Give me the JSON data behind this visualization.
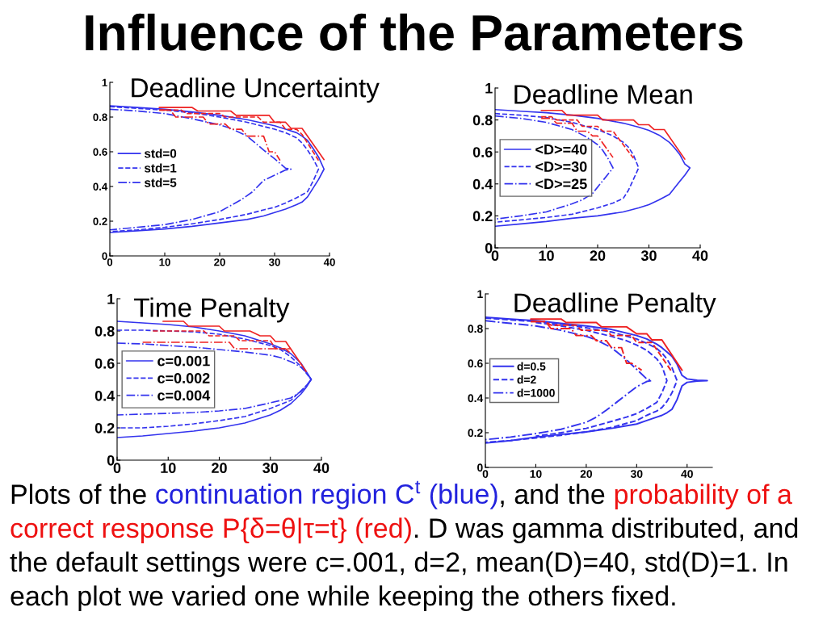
{
  "chart_data": [
    {
      "type": "other",
      "title": "Influence of the Parameters"
    },
    {
      "type": "line",
      "title": "Deadline Uncertainty",
      "xlim": [
        0,
        40
      ],
      "ylim": [
        0,
        1
      ],
      "xticks": [
        0,
        10,
        20,
        30,
        40
      ],
      "yticks": [
        0,
        0.2,
        0.4,
        0.6,
        0.8,
        1
      ],
      "legend": "left",
      "series": [
        {
          "name": "std=0",
          "color": "#3333ee",
          "line_style": "solid",
          "x": [
            0,
            5,
            10,
            15,
            20,
            25,
            30,
            32,
            34,
            35,
            36,
            37,
            38,
            39,
            38,
            37,
            36,
            35,
            34,
            32,
            30,
            28,
            25,
            20,
            15,
            10,
            5,
            0
          ],
          "values": [
            0.865,
            0.855,
            0.845,
            0.83,
            0.81,
            0.785,
            0.75,
            0.73,
            0.71,
            0.69,
            0.665,
            0.62,
            0.57,
            0.5,
            0.44,
            0.39,
            0.34,
            0.31,
            0.295,
            0.27,
            0.25,
            0.23,
            0.21,
            0.19,
            0.17,
            0.155,
            0.145,
            0.135
          ]
        },
        {
          "name": "std=1",
          "color": "#3333ee",
          "line_style": "dashed",
          "x": [
            0,
            5,
            10,
            15,
            20,
            25,
            30,
            32,
            34,
            35,
            36,
            37,
            38,
            37,
            36,
            34,
            32,
            30,
            28,
            25,
            20,
            15,
            10,
            5,
            0
          ],
          "values": [
            0.86,
            0.85,
            0.84,
            0.825,
            0.8,
            0.77,
            0.73,
            0.71,
            0.68,
            0.65,
            0.61,
            0.56,
            0.5,
            0.43,
            0.37,
            0.335,
            0.305,
            0.28,
            0.265,
            0.24,
            0.21,
            0.185,
            0.165,
            0.15,
            0.14
          ]
        },
        {
          "name": "std=5",
          "color": "#3333ee",
          "line_style": "dashdot",
          "x": [
            0,
            5,
            10,
            15,
            20,
            22,
            25,
            28,
            30,
            32,
            33,
            32,
            30,
            28,
            26,
            24,
            22,
            20,
            15,
            10,
            5,
            0
          ],
          "values": [
            0.845,
            0.835,
            0.82,
            0.79,
            0.755,
            0.735,
            0.69,
            0.61,
            0.56,
            0.505,
            0.5,
            0.495,
            0.465,
            0.435,
            0.37,
            0.325,
            0.29,
            0.255,
            0.21,
            0.18,
            0.165,
            0.15
          ]
        },
        {
          "color": "#ee2222",
          "line_style": "solid",
          "x": [
            9,
            15,
            16,
            22,
            23,
            29,
            30,
            32,
            33,
            35,
            39
          ],
          "values": [
            0.855,
            0.855,
            0.835,
            0.835,
            0.81,
            0.81,
            0.77,
            0.77,
            0.735,
            0.735,
            0.555
          ]
        },
        {
          "color": "#ee2222",
          "line_style": "dashed",
          "x": [
            9,
            13,
            14,
            20,
            21,
            27,
            28,
            31,
            32,
            34,
            35,
            38
          ],
          "values": [
            0.84,
            0.84,
            0.82,
            0.82,
            0.8,
            0.8,
            0.77,
            0.77,
            0.73,
            0.73,
            0.7,
            0.55
          ]
        },
        {
          "color": "#ee2222",
          "line_style": "dashdot",
          "x": [
            9,
            11,
            12,
            17,
            18,
            21,
            22,
            24,
            25,
            28,
            29,
            30,
            31
          ],
          "values": [
            0.84,
            0.84,
            0.8,
            0.8,
            0.76,
            0.76,
            0.73,
            0.73,
            0.69,
            0.69,
            0.6,
            0.6,
            0.55
          ]
        }
      ]
    },
    {
      "type": "line",
      "title": "Deadline Mean",
      "xlim": [
        0,
        40
      ],
      "ylim": [
        0,
        1
      ],
      "xticks": [
        0,
        10,
        20,
        30,
        40
      ],
      "yticks": [
        0,
        0.2,
        0.4,
        0.6,
        0.8,
        1
      ],
      "legend": "left",
      "series": [
        {
          "name": "<D>=40",
          "color": "#3333ee",
          "line_style": "solid",
          "x": [
            0,
            5,
            10,
            15,
            20,
            25,
            28,
            30,
            32,
            34,
            35,
            36,
            37,
            38,
            37,
            36,
            35,
            34,
            32,
            30,
            28,
            25,
            20,
            15,
            10,
            5,
            0
          ],
          "values": [
            0.865,
            0.855,
            0.845,
            0.83,
            0.81,
            0.78,
            0.755,
            0.735,
            0.705,
            0.66,
            0.625,
            0.585,
            0.525,
            0.5,
            0.455,
            0.415,
            0.375,
            0.335,
            0.3,
            0.27,
            0.25,
            0.225,
            0.2,
            0.185,
            0.165,
            0.15,
            0.135
          ]
        },
        {
          "name": "<D>=30",
          "color": "#3333ee",
          "line_style": "dashed",
          "x": [
            0,
            5,
            10,
            15,
            20,
            23,
            25,
            26,
            27,
            28,
            27,
            26,
            25,
            23,
            20,
            15,
            10,
            5,
            0
          ],
          "values": [
            0.84,
            0.83,
            0.815,
            0.785,
            0.74,
            0.7,
            0.66,
            0.63,
            0.58,
            0.5,
            0.43,
            0.36,
            0.31,
            0.28,
            0.25,
            0.21,
            0.19,
            0.175,
            0.16
          ]
        },
        {
          "name": "<D>=25",
          "color": "#3333ee",
          "line_style": "dashdot",
          "x": [
            0,
            5,
            10,
            15,
            18,
            20,
            21,
            22,
            23,
            22,
            21,
            19,
            17,
            15,
            10,
            5,
            0
          ],
          "values": [
            0.825,
            0.81,
            0.785,
            0.74,
            0.69,
            0.645,
            0.61,
            0.56,
            0.5,
            0.46,
            0.42,
            0.34,
            0.3,
            0.275,
            0.225,
            0.2,
            0.18
          ]
        },
        {
          "color": "#ee2222",
          "line_style": "solid",
          "x": [
            9,
            13,
            14,
            20,
            21,
            27,
            28,
            30,
            31,
            33,
            37
          ],
          "values": [
            0.86,
            0.86,
            0.83,
            0.83,
            0.8,
            0.8,
            0.77,
            0.77,
            0.74,
            0.74,
            0.555
          ]
        },
        {
          "color": "#ee2222",
          "line_style": "dashed",
          "x": [
            9,
            11,
            12,
            16,
            17,
            20,
            21,
            23,
            27
          ],
          "values": [
            0.82,
            0.82,
            0.8,
            0.8,
            0.76,
            0.76,
            0.73,
            0.73,
            0.56
          ]
        },
        {
          "color": "#ee2222",
          "line_style": "dashdot",
          "x": [
            9,
            11,
            12,
            15,
            16,
            18,
            19,
            20,
            23
          ],
          "values": [
            0.81,
            0.81,
            0.78,
            0.78,
            0.73,
            0.73,
            0.7,
            0.7,
            0.565
          ]
        }
      ]
    },
    {
      "type": "line",
      "title": "Time Penalty",
      "xlim": [
        0,
        40
      ],
      "ylim": [
        0,
        1
      ],
      "xticks": [
        0,
        10,
        20,
        30,
        40
      ],
      "yticks": [
        0,
        0.2,
        0.4,
        0.6,
        0.8,
        1
      ],
      "legend": "left",
      "series": [
        {
          "name": "c=0.001",
          "color": "#3333ee",
          "line_style": "solid",
          "x": [
            0,
            5,
            10,
            15,
            20,
            25,
            30,
            32,
            34,
            35,
            36,
            37,
            38,
            37,
            36,
            35,
            34,
            32,
            30,
            25,
            20,
            15,
            10,
            5,
            0
          ],
          "values": [
            0.86,
            0.85,
            0.84,
            0.825,
            0.8,
            0.77,
            0.72,
            0.695,
            0.66,
            0.63,
            0.6,
            0.55,
            0.5,
            0.45,
            0.41,
            0.38,
            0.35,
            0.31,
            0.28,
            0.23,
            0.2,
            0.18,
            0.165,
            0.15,
            0.14
          ]
        },
        {
          "name": "c=0.002",
          "color": "#3333ee",
          "line_style": "dashed",
          "x": [
            0,
            5,
            10,
            15,
            20,
            25,
            30,
            32,
            34,
            35,
            36,
            37,
            38,
            37,
            36,
            35,
            34,
            32,
            30,
            25,
            20,
            15,
            10,
            5,
            0
          ],
          "values": [
            0.805,
            0.805,
            0.8,
            0.795,
            0.78,
            0.75,
            0.71,
            0.685,
            0.64,
            0.61,
            0.58,
            0.54,
            0.5,
            0.46,
            0.43,
            0.4,
            0.37,
            0.345,
            0.32,
            0.27,
            0.245,
            0.225,
            0.21,
            0.2,
            0.2
          ]
        },
        {
          "name": "c=0.004",
          "color": "#3333ee",
          "line_style": "dashdot",
          "x": [
            0,
            5,
            10,
            15,
            20,
            25,
            30,
            32,
            34,
            35,
            36,
            37,
            38,
            37,
            36,
            35,
            34,
            32,
            30,
            25,
            20,
            15,
            10,
            5,
            0
          ],
          "values": [
            0.725,
            0.72,
            0.71,
            0.7,
            0.685,
            0.67,
            0.65,
            0.635,
            0.61,
            0.595,
            0.575,
            0.545,
            0.5,
            0.46,
            0.425,
            0.405,
            0.385,
            0.37,
            0.355,
            0.32,
            0.305,
            0.295,
            0.29,
            0.285,
            0.28
          ]
        },
        {
          "color": "#ee2222",
          "line_style": "solid",
          "x": [
            9,
            13,
            14,
            20,
            21,
            26,
            28,
            30,
            31,
            33,
            37
          ],
          "values": [
            0.86,
            0.86,
            0.83,
            0.83,
            0.8,
            0.8,
            0.77,
            0.77,
            0.735,
            0.735,
            0.55
          ]
        },
        {
          "color": "#ee2222",
          "line_style": "dashed",
          "x": [
            7,
            17,
            18,
            23,
            24,
            30,
            31,
            34
          ],
          "values": [
            0.8,
            0.8,
            0.77,
            0.77,
            0.74,
            0.74,
            0.69,
            0.69
          ]
        },
        {
          "color": "#ee2222",
          "line_style": "dashdot",
          "x": [
            5,
            22,
            23,
            33,
            34
          ],
          "values": [
            0.73,
            0.73,
            0.69,
            0.69,
            0.66
          ]
        }
      ]
    },
    {
      "type": "line",
      "title": "Deadline Penalty",
      "xlim": [
        0,
        45
      ],
      "ylim": [
        0,
        1
      ],
      "xticks": [
        0,
        10,
        20,
        30,
        40
      ],
      "yticks": [
        0,
        0.2,
        0.4,
        0.6,
        0.8,
        1
      ],
      "legend": "left",
      "series": [
        {
          "name": "d=0.5",
          "color": "#3333ee",
          "line_style": "solid",
          "x": [
            0,
            5,
            10,
            15,
            20,
            25,
            30,
            32,
            34,
            35,
            36,
            37,
            38,
            39,
            40,
            42,
            44,
            42,
            40,
            39,
            38,
            37,
            36,
            35,
            34,
            32,
            30,
            25,
            20,
            15,
            10,
            5,
            0
          ],
          "values": [
            0.865,
            0.855,
            0.845,
            0.83,
            0.815,
            0.795,
            0.76,
            0.74,
            0.71,
            0.69,
            0.665,
            0.64,
            0.595,
            0.53,
            0.51,
            0.502,
            0.5,
            0.498,
            0.49,
            0.47,
            0.39,
            0.335,
            0.315,
            0.3,
            0.29,
            0.27,
            0.25,
            0.225,
            0.205,
            0.19,
            0.175,
            0.155,
            0.14
          ]
        },
        {
          "name": "d=2",
          "color": "#3333ee",
          "line_style": "dashed",
          "x": [
            0,
            5,
            10,
            15,
            20,
            25,
            30,
            32,
            34,
            35,
            36,
            37,
            38,
            37,
            36,
            35,
            34,
            32,
            30,
            25,
            20,
            15,
            10,
            5,
            0
          ],
          "values": [
            0.86,
            0.85,
            0.84,
            0.825,
            0.805,
            0.78,
            0.74,
            0.715,
            0.685,
            0.66,
            0.625,
            0.575,
            0.5,
            0.43,
            0.38,
            0.345,
            0.325,
            0.3,
            0.27,
            0.23,
            0.205,
            0.185,
            0.17,
            0.155,
            0.145
          ]
        },
        {
          "name": "d=1000",
          "color": "#3333ee",
          "line_style": "dashdot",
          "x": [
            0,
            5,
            10,
            15,
            20,
            22,
            25,
            28,
            30,
            32,
            33,
            32,
            30,
            28,
            26,
            24,
            22,
            20,
            15,
            10,
            5,
            0
          ],
          "values": [
            0.845,
            0.83,
            0.815,
            0.79,
            0.755,
            0.735,
            0.69,
            0.62,
            0.565,
            0.51,
            0.5,
            0.495,
            0.465,
            0.42,
            0.375,
            0.33,
            0.29,
            0.26,
            0.22,
            0.195,
            0.175,
            0.16
          ]
        },
        {
          "color": "#3333ee",
          "line_style": "dashed",
          "x": [
            10,
            15,
            20,
            25,
            28,
            30,
            32,
            34,
            35,
            36,
            35,
            34,
            32,
            30,
            28,
            25,
            20,
            15,
            10
          ],
          "values": [
            0.835,
            0.815,
            0.79,
            0.755,
            0.73,
            0.705,
            0.675,
            0.625,
            0.585,
            0.5,
            0.43,
            0.375,
            0.34,
            0.31,
            0.29,
            0.265,
            0.225,
            0.2,
            0.18
          ]
        },
        {
          "color": "#ee2222",
          "line_style": "solid",
          "x": [
            9,
            15,
            16,
            22,
            23,
            28,
            30,
            32,
            33,
            35,
            39
          ],
          "values": [
            0.855,
            0.855,
            0.835,
            0.835,
            0.81,
            0.81,
            0.77,
            0.77,
            0.735,
            0.735,
            0.56
          ]
        },
        {
          "color": "#ee2222",
          "line_style": "dashed",
          "x": [
            9,
            12,
            13,
            18,
            19,
            24,
            25,
            29,
            30,
            33,
            37
          ],
          "values": [
            0.84,
            0.84,
            0.82,
            0.82,
            0.79,
            0.79,
            0.76,
            0.76,
            0.72,
            0.72,
            0.55
          ]
        },
        {
          "color": "#ee2222",
          "line_style": "dashdot",
          "x": [
            9,
            12,
            13,
            17,
            18,
            21,
            22,
            24,
            25,
            27,
            28,
            29,
            31
          ],
          "values": [
            0.84,
            0.84,
            0.8,
            0.8,
            0.76,
            0.76,
            0.73,
            0.73,
            0.69,
            0.69,
            0.6,
            0.6,
            0.56
          ]
        }
      ]
    },
    {
      "type": "other",
      "annotations": [
        "Plots of the ",
        "continuation region C$^{t}$ (blue)",
        ", and the ",
        "probability of a ",
        "correct response P{δ=θ|τ=t} (red)",
        ". D was gamma distributed, and ",
        "the default settings were c=.001, d=2, mean(D)=40, std(D)=1. In ",
        "each plot we varied one while keeping the others fixed."
      ],
      "colors": [
        "#000000",
        "#2222dd",
        "#000000",
        "#ee1111",
        "#ee1111",
        "#000000",
        "#000000",
        "#000000"
      ]
    }
  ]
}
